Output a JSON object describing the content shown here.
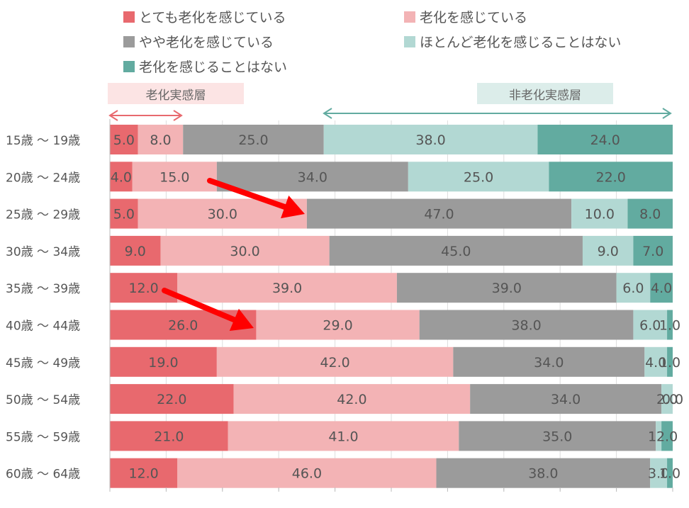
{
  "colors": {
    "very_aging": "#E8696E",
    "aging": "#F3B3B5",
    "somewhat_aging": "#9B9B9B",
    "rarely_aging": "#B2D8D3",
    "not_aging": "#62ABA0",
    "aging_group_label_bg": "#FCE4E4",
    "non_aging_group_label_bg": "#DCEDEA",
    "emphasis_arrow": "#FF0000"
  },
  "groups": {
    "aging_label": "老化実感層",
    "non_aging_label": "非老化実感層"
  },
  "chart_data": {
    "type": "bar",
    "orientation": "horizontal",
    "stacked": true,
    "normalized": true,
    "categories": [
      "15歳 〜 19歳",
      "20歳 〜 24歳",
      "25歳 〜 29歳",
      "30歳 〜 34歳",
      "35歳 〜 39歳",
      "40歳 〜 44歳",
      "45歳 〜 49歳",
      "50歳 〜 54歳",
      "55歳 〜 59歳",
      "60歳 〜 64歳"
    ],
    "series": [
      {
        "name": "とても老化を感じている",
        "color": "#E8696E",
        "values": [
          5.0,
          4.0,
          5.0,
          9.0,
          12.0,
          26.0,
          19.0,
          22.0,
          21.0,
          12.0
        ],
        "labels": [
          "5.0",
          "4.0",
          "5.0",
          "9.0",
          "12.0",
          "26.0",
          "19.0",
          "22.0",
          "21.0",
          "12.0"
        ]
      },
      {
        "name": "老化を感じている",
        "color": "#F3B3B5",
        "values": [
          8.0,
          15.0,
          30.0,
          30.0,
          39.0,
          29.0,
          42.0,
          42.0,
          41.0,
          46.0
        ],
        "labels": [
          "8.0",
          "15.0",
          "30.0",
          "30.0",
          "39.0",
          "29.0",
          "42.0",
          "42.0",
          "41.0",
          "46.0"
        ]
      },
      {
        "name": "やや老化を感じている",
        "color": "#9B9B9B",
        "values": [
          25.0,
          34.0,
          47.0,
          45.0,
          39.0,
          38.0,
          34.0,
          34.0,
          35.0,
          38.0
        ],
        "labels": [
          "25.0",
          "34.0",
          "47.0",
          "45.0",
          "39.0",
          "38.0",
          "34.0",
          "34.0",
          "35.0",
          "38.0"
        ]
      },
      {
        "name": "ほとんど老化を感じることはない",
        "color": "#B2D8D3",
        "values": [
          38.0,
          25.0,
          10.0,
          9.0,
          6.0,
          6.0,
          4.0,
          2.0,
          1.0,
          3.0
        ],
        "labels": [
          "38.0",
          "25.0",
          "10.0",
          "9.0",
          "6.0",
          "6.0",
          "4.0",
          "2.0",
          "1.0",
          "3.0"
        ]
      },
      {
        "name": "老化を感じることはない",
        "color": "#62ABA0",
        "values": [
          24.0,
          22.0,
          8.0,
          7.0,
          4.0,
          1.0,
          1.0,
          0.0,
          2.0,
          1.0
        ],
        "labels": [
          "24.0",
          "22.0",
          "8.0",
          "7.0",
          "4.0",
          "1.0",
          "1.0",
          "0.0",
          "2.0",
          "1.0"
        ]
      }
    ],
    "legend_position": "top",
    "grid": true,
    "data_labels": true
  }
}
